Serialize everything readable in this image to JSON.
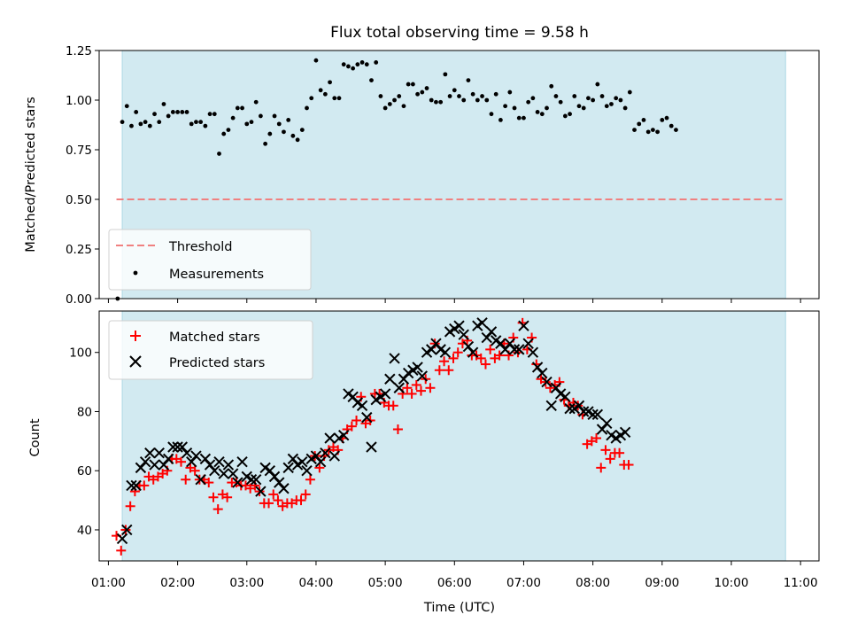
{
  "chart_data": [
    {
      "type": "scatter",
      "title": "Flux total observing time = 9.58 h",
      "xlabel": "",
      "ylabel": "Matched/Predicted stars",
      "xlim": [
        "00:52",
        "11:16"
      ],
      "ylim": [
        0,
        1.25
      ],
      "yticks": [
        "0.00",
        "0.25",
        "0.50",
        "0.75",
        "1.00",
        "1.25"
      ],
      "shaded_interval": [
        "01:12",
        "10:47"
      ],
      "shaded_color": "#add8e6",
      "threshold": {
        "name": "Threshold",
        "y": 0.5,
        "x_range": [
          "01:07",
          "10:47"
        ],
        "color": "#f08080"
      },
      "legend": {
        "position": "lower-left",
        "entries": [
          "Threshold",
          "Measurements"
        ]
      },
      "series": [
        {
          "name": "Measurements",
          "marker": "dot",
          "color": "#000000",
          "points": [
            [
              "01:08",
              0.0
            ],
            [
              "01:12",
              0.89
            ],
            [
              "01:16",
              0.97
            ],
            [
              "01:20",
              0.87
            ],
            [
              "01:24",
              0.94
            ],
            [
              "01:28",
              0.88
            ],
            [
              "01:32",
              0.89
            ],
            [
              "01:36",
              0.87
            ],
            [
              "01:40",
              0.93
            ],
            [
              "01:44",
              0.89
            ],
            [
              "01:48",
              0.98
            ],
            [
              "01:52",
              0.92
            ],
            [
              "01:56",
              0.94
            ],
            [
              "02:00",
              0.94
            ],
            [
              "02:04",
              0.94
            ],
            [
              "02:08",
              0.94
            ],
            [
              "02:12",
              0.88
            ],
            [
              "02:16",
              0.89
            ],
            [
              "02:20",
              0.89
            ],
            [
              "02:24",
              0.87
            ],
            [
              "02:28",
              0.93
            ],
            [
              "02:32",
              0.93
            ],
            [
              "02:36",
              0.73
            ],
            [
              "02:40",
              0.83
            ],
            [
              "02:44",
              0.85
            ],
            [
              "02:48",
              0.91
            ],
            [
              "02:52",
              0.96
            ],
            [
              "02:56",
              0.96
            ],
            [
              "03:00",
              0.88
            ],
            [
              "03:04",
              0.89
            ],
            [
              "03:08",
              0.99
            ],
            [
              "03:12",
              0.92
            ],
            [
              "03:16",
              0.78
            ],
            [
              "03:20",
              0.83
            ],
            [
              "03:24",
              0.92
            ],
            [
              "03:28",
              0.88
            ],
            [
              "03:32",
              0.84
            ],
            [
              "03:36",
              0.9
            ],
            [
              "03:40",
              0.82
            ],
            [
              "03:44",
              0.8
            ],
            [
              "03:48",
              0.85
            ],
            [
              "03:52",
              0.96
            ],
            [
              "03:56",
              1.01
            ],
            [
              "04:00",
              1.2
            ],
            [
              "04:04",
              1.05
            ],
            [
              "04:08",
              1.03
            ],
            [
              "04:12",
              1.09
            ],
            [
              "04:16",
              1.01
            ],
            [
              "04:20",
              1.01
            ],
            [
              "04:24",
              1.18
            ],
            [
              "04:28",
              1.17
            ],
            [
              "04:32",
              1.16
            ],
            [
              "04:36",
              1.18
            ],
            [
              "04:40",
              1.19
            ],
            [
              "04:44",
              1.18
            ],
            [
              "04:48",
              1.1
            ],
            [
              "04:52",
              1.19
            ],
            [
              "04:56",
              1.02
            ],
            [
              "05:00",
              0.96
            ],
            [
              "05:04",
              0.98
            ],
            [
              "05:08",
              1.0
            ],
            [
              "05:12",
              1.02
            ],
            [
              "05:16",
              0.97
            ],
            [
              "05:20",
              1.08
            ],
            [
              "05:24",
              1.08
            ],
            [
              "05:28",
              1.03
            ],
            [
              "05:32",
              1.04
            ],
            [
              "05:36",
              1.06
            ],
            [
              "05:40",
              1.0
            ],
            [
              "05:44",
              0.99
            ],
            [
              "05:48",
              0.99
            ],
            [
              "05:52",
              1.13
            ],
            [
              "05:56",
              1.02
            ],
            [
              "06:00",
              1.05
            ],
            [
              "06:04",
              1.02
            ],
            [
              "06:08",
              1.0
            ],
            [
              "06:12",
              1.1
            ],
            [
              "06:16",
              1.03
            ],
            [
              "06:20",
              1.0
            ],
            [
              "06:24",
              1.02
            ],
            [
              "06:28",
              1.0
            ],
            [
              "06:32",
              0.93
            ],
            [
              "06:36",
              1.03
            ],
            [
              "06:40",
              0.9
            ],
            [
              "06:44",
              0.97
            ],
            [
              "06:48",
              1.04
            ],
            [
              "06:52",
              0.96
            ],
            [
              "06:56",
              0.91
            ],
            [
              "07:00",
              0.91
            ],
            [
              "07:04",
              0.99
            ],
            [
              "07:08",
              1.01
            ],
            [
              "07:12",
              0.94
            ],
            [
              "07:16",
              0.93
            ],
            [
              "07:20",
              0.96
            ],
            [
              "07:24",
              1.07
            ],
            [
              "07:28",
              1.02
            ],
            [
              "07:32",
              0.99
            ],
            [
              "07:36",
              0.92
            ],
            [
              "07:40",
              0.93
            ],
            [
              "07:44",
              1.02
            ],
            [
              "07:48",
              0.97
            ],
            [
              "07:52",
              0.96
            ],
            [
              "07:56",
              1.01
            ],
            [
              "08:00",
              1.0
            ],
            [
              "08:04",
              1.08
            ],
            [
              "08:08",
              1.02
            ],
            [
              "08:12",
              0.97
            ],
            [
              "08:16",
              0.98
            ],
            [
              "08:20",
              1.01
            ],
            [
              "08:24",
              1.0
            ],
            [
              "08:28",
              0.96
            ],
            [
              "08:32",
              1.04
            ],
            [
              "08:36",
              0.85
            ],
            [
              "08:40",
              0.88
            ],
            [
              "08:44",
              0.9
            ],
            [
              "08:48",
              0.84
            ],
            [
              "08:52",
              0.85
            ],
            [
              "08:56",
              0.84
            ],
            [
              "09:00",
              0.9
            ],
            [
              "09:04",
              0.91
            ],
            [
              "09:08",
              0.87
            ],
            [
              "09:12",
              0.85
            ]
          ]
        }
      ]
    },
    {
      "type": "scatter",
      "title": "",
      "xlabel": "Time (UTC)",
      "ylabel": "Count",
      "xlim": [
        "00:52",
        "11:16"
      ],
      "ylim": [
        29.5,
        114
      ],
      "yticks": [
        "40",
        "60",
        "80",
        "100"
      ],
      "xticks": [
        "01:00",
        "02:00",
        "03:00",
        "04:00",
        "05:00",
        "06:00",
        "07:00",
        "08:00",
        "09:00",
        "10:00",
        "11:00"
      ],
      "shaded_interval": [
        "01:12",
        "10:47"
      ],
      "shaded_color": "#add8e6",
      "legend": {
        "position": "top-left",
        "entries": [
          "Matched stars",
          "Predicted stars"
        ]
      },
      "series": [
        {
          "name": "Matched stars",
          "marker": "plus",
          "color": "#ff0000",
          "values": [
            38,
            33,
            40,
            48,
            53,
            55,
            55,
            58,
            57,
            58,
            59,
            60,
            64,
            64,
            63,
            57,
            61,
            60,
            57,
            57,
            56,
            51,
            47,
            52,
            51,
            56,
            56,
            55,
            55,
            54,
            55,
            53,
            49,
            49,
            52,
            50,
            48,
            49,
            49,
            50,
            50,
            52,
            57,
            65,
            61,
            65,
            67,
            68,
            67,
            71,
            74,
            75,
            77,
            85,
            76,
            77,
            86,
            86,
            83,
            82,
            82,
            74,
            86,
            88,
            86,
            89,
            87,
            91,
            88,
            103,
            94,
            97,
            94,
            98,
            100,
            103,
            104,
            99,
            99,
            98,
            96,
            101,
            98,
            99,
            103,
            99,
            105,
            100,
            110,
            101,
            105,
            96,
            91,
            90,
            88,
            89,
            90,
            84,
            82,
            83,
            82,
            79,
            69,
            70,
            71,
            61,
            67,
            64,
            66,
            66,
            62,
            62
          ],
          "times": [
            "01:07",
            "01:11",
            "01:15",
            "01:19",
            "01:23",
            "01:27",
            "01:31",
            "01:35",
            "01:39",
            "01:43",
            "01:47",
            "01:51",
            "01:55",
            "01:59",
            "02:03",
            "02:07",
            "02:11",
            "02:15",
            "02:19",
            "02:23",
            "02:27",
            "02:31",
            "02:35",
            "02:39",
            "02:43",
            "02:47",
            "02:51",
            "02:55",
            "02:59",
            "03:03",
            "03:07",
            "03:11",
            "03:15",
            "03:19",
            "03:23",
            "03:27",
            "03:31",
            "03:35",
            "03:39",
            "03:43",
            "03:47",
            "03:51",
            "03:55",
            "03:59",
            "04:03",
            "04:07",
            "04:11",
            "04:15",
            "04:19",
            "04:23",
            "04:27",
            "04:31",
            "04:35",
            "04:39",
            "04:43",
            "04:47",
            "04:51",
            "04:55",
            "04:59",
            "05:03",
            "05:07",
            "05:11",
            "05:15",
            "05:19",
            "05:23",
            "05:27",
            "05:31",
            "05:35",
            "05:39",
            "05:43",
            "05:47",
            "05:51",
            "05:55",
            "05:59",
            "06:03",
            "06:07",
            "06:11",
            "06:15",
            "06:19",
            "06:23",
            "06:27",
            "06:31",
            "06:35",
            "06:39",
            "06:43",
            "06:47",
            "06:51",
            "06:55",
            "06:59",
            "07:03",
            "07:07",
            "07:11",
            "07:15",
            "07:19",
            "07:23",
            "07:27",
            "07:31",
            "07:35",
            "07:39",
            "07:43",
            "07:47",
            "07:51",
            "07:55",
            "07:59",
            "08:03",
            "08:07",
            "08:11",
            "08:15",
            "08:19",
            "08:23",
            "08:27",
            "08:31"
          ]
        },
        {
          "name": "Predicted stars",
          "marker": "x",
          "color": "#000000",
          "values": [
            37,
            40,
            55,
            55,
            61,
            63,
            66,
            62,
            66,
            62,
            64,
            68,
            68,
            68,
            66,
            63,
            65,
            57,
            64,
            62,
            60,
            63,
            59,
            62,
            59,
            56,
            63,
            58,
            57,
            57,
            53,
            61,
            60,
            58,
            56,
            54,
            61,
            64,
            62,
            63,
            60,
            64,
            65,
            63,
            66,
            71,
            65,
            71,
            72,
            86,
            85,
            83,
            82,
            78,
            68,
            84,
            85,
            86,
            91,
            98,
            88,
            91,
            93,
            94,
            95,
            92,
            100,
            101,
            103,
            101,
            100,
            107,
            108,
            109,
            106,
            102,
            100,
            109,
            110,
            105,
            107,
            104,
            103,
            101,
            103,
            101,
            101,
            109,
            103,
            100,
            95,
            93,
            90,
            82,
            88,
            86,
            85,
            81,
            81,
            82,
            80,
            80,
            79,
            79,
            74,
            76,
            72,
            71,
            72,
            73
          ],
          "times": [
            "01:12",
            "01:16",
            "01:20",
            "01:24",
            "01:28",
            "01:32",
            "01:36",
            "01:40",
            "01:44",
            "01:48",
            "01:52",
            "01:56",
            "02:00",
            "02:04",
            "02:08",
            "02:12",
            "02:16",
            "02:20",
            "02:24",
            "02:28",
            "02:32",
            "02:36",
            "02:40",
            "02:44",
            "02:48",
            "02:52",
            "02:56",
            "03:00",
            "03:04",
            "03:08",
            "03:12",
            "03:16",
            "03:20",
            "03:24",
            "03:28",
            "03:32",
            "03:36",
            "03:40",
            "03:44",
            "03:48",
            "03:52",
            "03:56",
            "04:00",
            "04:04",
            "04:08",
            "04:12",
            "04:16",
            "04:20",
            "04:24",
            "04:28",
            "04:32",
            "04:36",
            "04:40",
            "04:44",
            "04:48",
            "04:52",
            "04:56",
            "05:00",
            "05:04",
            "05:08",
            "05:12",
            "05:16",
            "05:20",
            "05:24",
            "05:28",
            "05:32",
            "05:36",
            "05:40",
            "05:44",
            "05:48",
            "05:52",
            "05:56",
            "06:00",
            "06:04",
            "06:08",
            "06:12",
            "06:16",
            "06:20",
            "06:24",
            "06:28",
            "06:32",
            "06:36",
            "06:40",
            "06:44",
            "06:48",
            "06:52",
            "06:56",
            "07:00",
            "07:04",
            "07:08",
            "07:12",
            "07:16",
            "07:20",
            "07:24",
            "07:28",
            "07:32",
            "07:36",
            "07:40",
            "07:44",
            "07:48",
            "07:52",
            "07:56",
            "08:00",
            "08:04",
            "08:08",
            "08:12",
            "08:16",
            "08:20",
            "08:24",
            "08:28"
          ]
        }
      ]
    }
  ]
}
